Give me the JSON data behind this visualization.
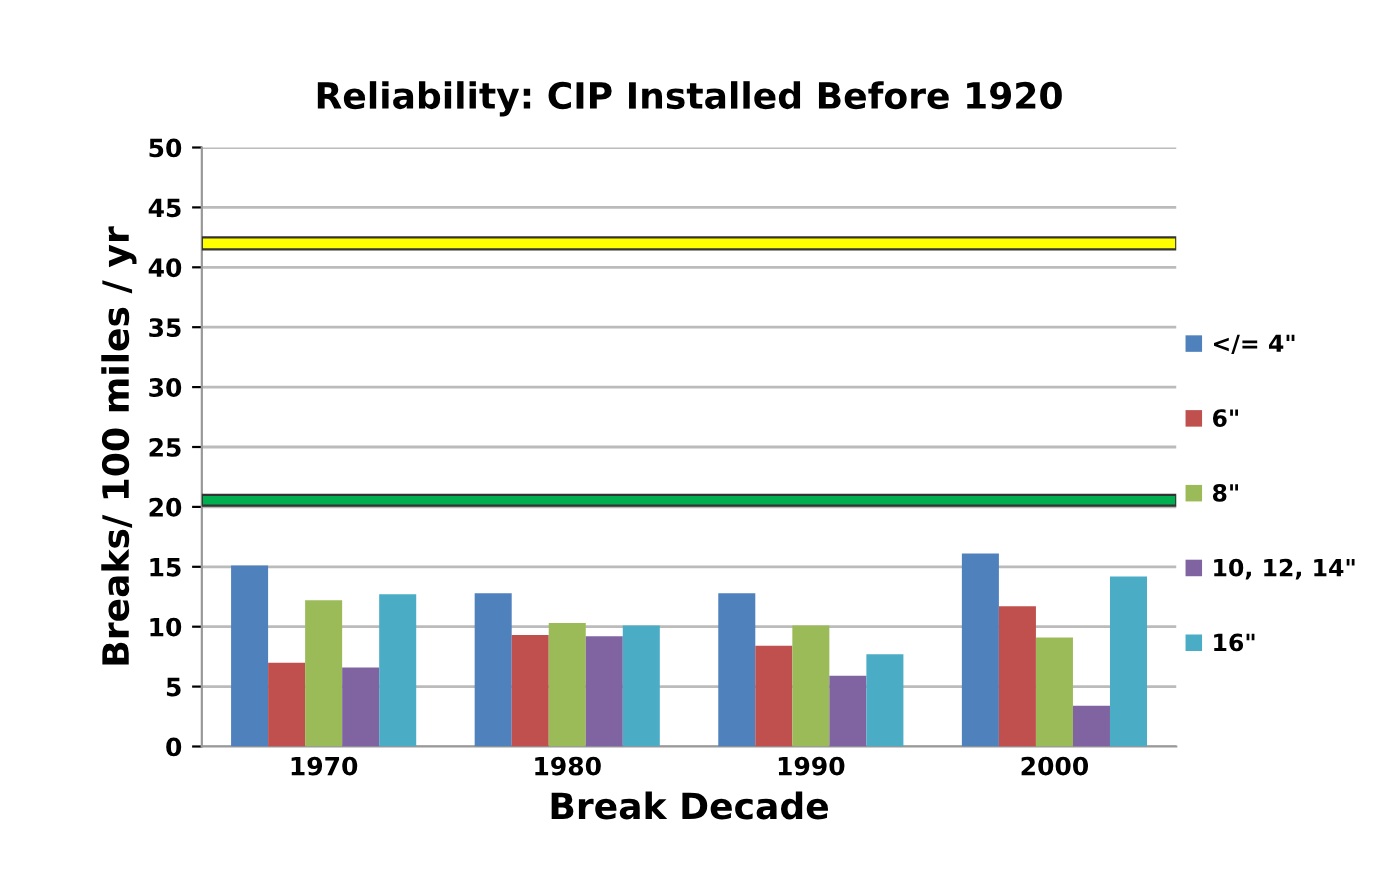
{
  "chart_data": {
    "type": "bar",
    "title": "Reliability: CIP Installed Before 1920",
    "xlabel": "Break Decade",
    "ylabel": "Breaks/ 100 miles / yr",
    "categories": [
      "1970",
      "1980",
      "1990",
      "2000"
    ],
    "series": [
      {
        "name": "</= 4\"",
        "color": "#4f81bd",
        "values": [
          15.1,
          12.8,
          12.8,
          16.1
        ]
      },
      {
        "name": "6\"",
        "color": "#c0504d",
        "values": [
          7.0,
          9.3,
          8.4,
          11.7
        ]
      },
      {
        "name": "8\"",
        "color": "#9bbb59",
        "values": [
          12.2,
          10.3,
          10.1,
          9.1
        ]
      },
      {
        "name": "10, 12, 14\"",
        "color": "#8064a2",
        "values": [
          6.6,
          9.2,
          5.9,
          3.4
        ]
      },
      {
        "name": "16\"",
        "color": "#4bacc6",
        "values": [
          12.7,
          10.1,
          7.7,
          14.2
        ]
      }
    ],
    "bands": [
      {
        "axis": "y",
        "from": 41.5,
        "to": 42.5,
        "color": "#ffff00"
      },
      {
        "axis": "y",
        "from": 20.1,
        "to": 21.0,
        "color": "#00b050"
      }
    ],
    "ylim": [
      0,
      50
    ],
    "yticks": [
      0,
      5,
      10,
      15,
      20,
      25,
      30,
      35,
      40,
      45,
      50
    ],
    "grid": "y",
    "legend": "right"
  }
}
